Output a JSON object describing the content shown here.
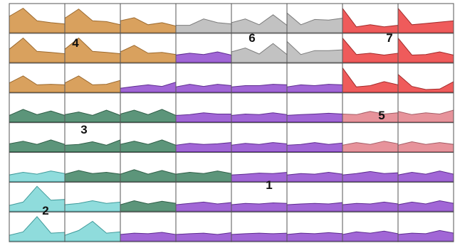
{
  "colors": {
    "orange": {
      "fill": "#d9a15e",
      "stroke": "#9c6a2f"
    },
    "gray": {
      "fill": "#c2c2c2",
      "stroke": "#7c7c7c"
    },
    "red": {
      "fill": "#ef5b5b",
      "stroke": "#a32a2a"
    },
    "green": {
      "fill": "#5c957a",
      "stroke": "#2f5e47"
    },
    "pink": {
      "fill": "#e7939b",
      "stroke": "#a55c65"
    },
    "cyan": {
      "fill": "#8fdcdc",
      "stroke": "#3f9a9a"
    },
    "purple": {
      "fill": "#a166d6",
      "stroke": "#5e2d90"
    }
  },
  "chart_data": {
    "type": "area",
    "rows": 8,
    "cols": 8,
    "points_per_cell": 5,
    "ylim": [
      0,
      1
    ],
    "regions": [
      {
        "label": "1",
        "color": "purple"
      },
      {
        "label": "2",
        "color": "cyan"
      },
      {
        "label": "3",
        "color": "green"
      },
      {
        "label": "4",
        "color": "orange"
      },
      {
        "label": "5",
        "color": "pink"
      },
      {
        "label": "6",
        "color": "gray"
      },
      {
        "label": "7",
        "color": "red"
      }
    ],
    "cells": [
      [
        {
          "color": "orange",
          "values": [
            0.62,
            0.93,
            0.45,
            0.38,
            0.33
          ]
        },
        {
          "color": "orange",
          "values": [
            0.55,
            0.9,
            0.45,
            0.42,
            0.3
          ]
        },
        {
          "color": "orange",
          "values": [
            0.45,
            0.57,
            0.3,
            0.38,
            0.25
          ]
        },
        {
          "color": "gray",
          "values": [
            0.28,
            0.28,
            0.52,
            0.38,
            0.33
          ]
        },
        {
          "color": "gray",
          "values": [
            0.38,
            0.52,
            0.3,
            0.68,
            0.28
          ]
        },
        {
          "color": "gray",
          "values": [
            0.75,
            0.3,
            0.5,
            0.48,
            0.55
          ]
        },
        {
          "color": "red",
          "values": [
            0.93,
            0.22,
            0.3,
            0.22,
            0.28
          ]
        },
        {
          "color": "red",
          "values": [
            0.93,
            0.3,
            0.35,
            0.4,
            0.45
          ]
        }
      ],
      [
        {
          "color": "orange",
          "values": [
            0.5,
            0.93,
            0.42,
            0.38,
            0.33
          ]
        },
        {
          "color": "orange",
          "values": [
            0.5,
            0.93,
            0.42,
            0.38,
            0.33
          ]
        },
        {
          "color": "orange",
          "values": [
            0.4,
            0.65,
            0.35,
            0.38,
            0.3
          ]
        },
        {
          "color": "purple",
          "values": [
            0.28,
            0.35,
            0.3,
            0.4,
            0.28
          ]
        },
        {
          "color": "gray",
          "values": [
            0.4,
            0.55,
            0.32,
            0.72,
            0.3
          ]
        },
        {
          "color": "gray",
          "values": [
            0.8,
            0.3,
            0.45,
            0.45,
            0.48
          ]
        },
        {
          "color": "red",
          "values": [
            0.93,
            0.3,
            0.35,
            0.28,
            0.35
          ]
        },
        {
          "color": "red",
          "values": [
            0.93,
            0.28,
            0.3,
            0.4,
            0.28
          ]
        }
      ],
      [
        {
          "color": "orange",
          "values": [
            0.35,
            0.62,
            0.28,
            0.3,
            0.28
          ]
        },
        {
          "color": "orange",
          "values": [
            0.35,
            0.62,
            0.28,
            0.3,
            0.45
          ]
        },
        {
          "color": "purple",
          "values": [
            0.15,
            0.22,
            0.28,
            0.22,
            0.38
          ]
        },
        {
          "color": "purple",
          "values": [
            0.2,
            0.3,
            0.22,
            0.3,
            0.25
          ]
        },
        {
          "color": "purple",
          "values": [
            0.2,
            0.25,
            0.25,
            0.3,
            0.28
          ]
        },
        {
          "color": "purple",
          "values": [
            0.2,
            0.28,
            0.25,
            0.3,
            0.28
          ]
        },
        {
          "color": "red",
          "values": [
            0.93,
            0.2,
            0.25,
            0.4,
            0.28
          ]
        },
        {
          "color": "red",
          "values": [
            0.68,
            0.22,
            0.1,
            0.12,
            0.4
          ]
        }
      ],
      [
        {
          "color": "green",
          "values": [
            0.25,
            0.48,
            0.28,
            0.42,
            0.25
          ]
        },
        {
          "color": "green",
          "values": [
            0.28,
            0.38,
            0.25,
            0.45,
            0.25
          ]
        },
        {
          "color": "green",
          "values": [
            0.3,
            0.45,
            0.28,
            0.48,
            0.25
          ]
        },
        {
          "color": "purple",
          "values": [
            0.25,
            0.28,
            0.35,
            0.3,
            0.3
          ]
        },
        {
          "color": "purple",
          "values": [
            0.25,
            0.3,
            0.28,
            0.35,
            0.28
          ]
        },
        {
          "color": "purple",
          "values": [
            0.25,
            0.28,
            0.3,
            0.33,
            0.3
          ]
        },
        {
          "color": "pink",
          "values": [
            0.3,
            0.28,
            0.4,
            0.3,
            0.35
          ]
        },
        {
          "color": "pink",
          "values": [
            0.4,
            0.28,
            0.35,
            0.3,
            0.45
          ]
        }
      ],
      [
        {
          "color": "green",
          "values": [
            0.3,
            0.4,
            0.28,
            0.45,
            0.28
          ]
        },
        {
          "color": "green",
          "values": [
            0.25,
            0.28,
            0.38,
            0.25,
            0.45
          ]
        },
        {
          "color": "green",
          "values": [
            0.28,
            0.4,
            0.28,
            0.45,
            0.25
          ]
        },
        {
          "color": "purple",
          "values": [
            0.25,
            0.32,
            0.28,
            0.3,
            0.35
          ]
        },
        {
          "color": "purple",
          "values": [
            0.25,
            0.32,
            0.28,
            0.35,
            0.3
          ]
        },
        {
          "color": "purple",
          "values": [
            0.25,
            0.28,
            0.35,
            0.28,
            0.33
          ]
        },
        {
          "color": "pink",
          "values": [
            0.25,
            0.35,
            0.28,
            0.4,
            0.3
          ]
        },
        {
          "color": "pink",
          "values": [
            0.25,
            0.38,
            0.28,
            0.35,
            0.28
          ]
        }
      ],
      [
        {
          "color": "cyan",
          "values": [
            0.25,
            0.35,
            0.28,
            0.4,
            0.3
          ]
        },
        {
          "color": "green",
          "values": [
            0.28,
            0.42,
            0.3,
            0.35,
            0.28
          ]
        },
        {
          "color": "green",
          "values": [
            0.28,
            0.45,
            0.28,
            0.42,
            0.28
          ]
        },
        {
          "color": "green",
          "values": [
            0.28,
            0.35,
            0.3,
            0.4,
            0.3
          ]
        },
        {
          "color": "purple",
          "values": [
            0.25,
            0.28,
            0.32,
            0.3,
            0.35
          ]
        },
        {
          "color": "purple",
          "values": [
            0.25,
            0.3,
            0.28,
            0.35,
            0.28
          ]
        },
        {
          "color": "purple",
          "values": [
            0.25,
            0.3,
            0.38,
            0.3,
            0.33
          ]
        },
        {
          "color": "purple",
          "values": [
            0.25,
            0.35,
            0.28,
            0.4,
            0.28
          ]
        }
      ],
      [
        {
          "color": "cyan",
          "values": [
            0.22,
            0.35,
            0.95,
            0.42,
            0.45
          ]
        },
        {
          "color": "cyan",
          "values": [
            0.25,
            0.3,
            0.4,
            0.3,
            0.35
          ]
        },
        {
          "color": "green",
          "values": [
            0.25,
            0.4,
            0.28,
            0.38,
            0.3
          ]
        },
        {
          "color": "purple",
          "values": [
            0.25,
            0.3,
            0.35,
            0.28,
            0.33
          ]
        },
        {
          "color": "purple",
          "values": [
            0.25,
            0.3,
            0.28,
            0.32,
            0.3
          ]
        },
        {
          "color": "purple",
          "values": [
            0.25,
            0.28,
            0.3,
            0.28,
            0.33
          ]
        },
        {
          "color": "purple",
          "values": [
            0.25,
            0.3,
            0.28,
            0.35,
            0.28
          ]
        },
        {
          "color": "purple",
          "values": [
            0.25,
            0.35,
            0.28,
            0.4,
            0.3
          ]
        }
      ],
      [
        {
          "color": "cyan",
          "values": [
            0.22,
            0.35,
            0.93,
            0.3,
            0.33
          ]
        },
        {
          "color": "cyan",
          "values": [
            0.22,
            0.4,
            0.75,
            0.3,
            0.35
          ]
        },
        {
          "color": "purple",
          "values": [
            0.25,
            0.3,
            0.28,
            0.33,
            0.25
          ]
        },
        {
          "color": "purple",
          "values": [
            0.25,
            0.28,
            0.3,
            0.25,
            0.32
          ]
        },
        {
          "color": "purple",
          "values": [
            0.25,
            0.28,
            0.3,
            0.28,
            0.3
          ]
        },
        {
          "color": "purple",
          "values": [
            0.25,
            0.3,
            0.28,
            0.32,
            0.28
          ]
        },
        {
          "color": "purple",
          "values": [
            0.25,
            0.35,
            0.3,
            0.38,
            0.28
          ]
        },
        {
          "color": "purple",
          "values": [
            0.25,
            0.3,
            0.28,
            0.4,
            0.3
          ]
        }
      ]
    ]
  }
}
